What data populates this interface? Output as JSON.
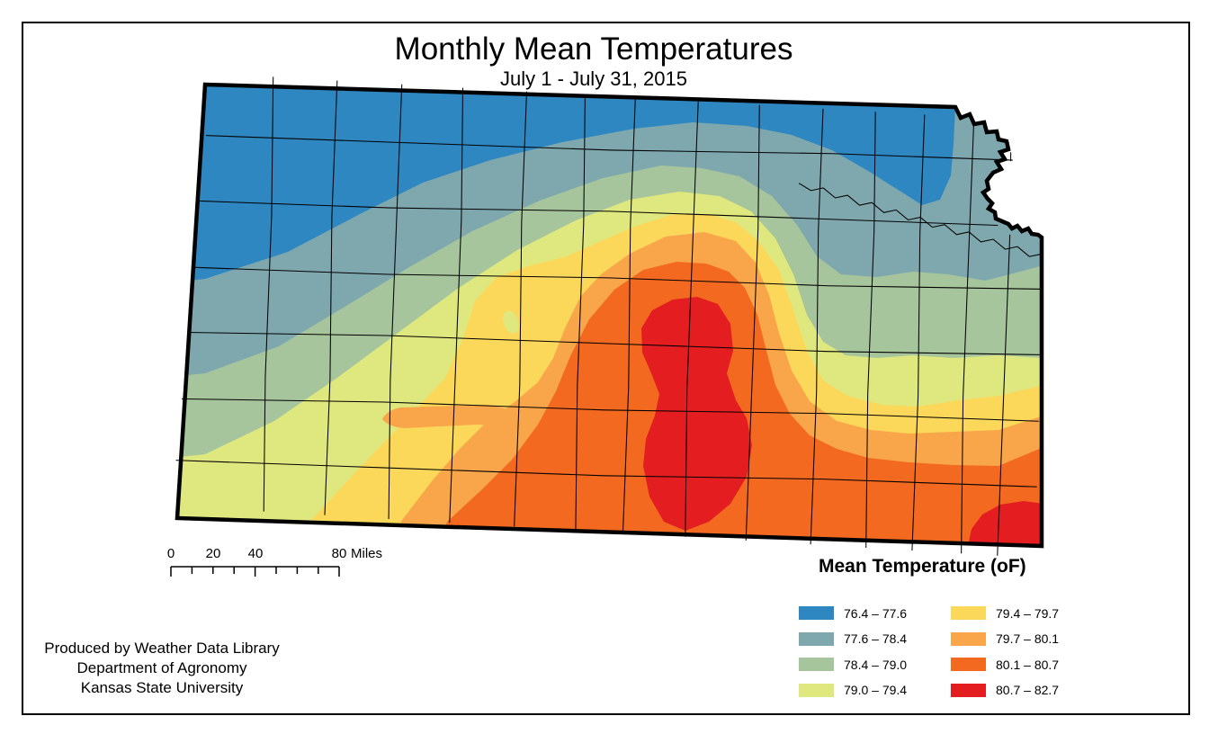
{
  "title": {
    "main": "Monthly Mean Temperatures",
    "subtitle": "July 1 - July 31, 2015"
  },
  "legend": {
    "title": "Mean Temperature (oF)",
    "items": [
      {
        "label": "76.4 – 77.6",
        "color": "#2E87C1"
      },
      {
        "label": "77.6 – 78.4",
        "color": "#7EA8AE"
      },
      {
        "label": "78.4 – 79.0",
        "color": "#A7C59C"
      },
      {
        "label": "79.0 – 79.4",
        "color": "#DFE87F"
      },
      {
        "label": "79.4 – 79.7",
        "color": "#FBD85A"
      },
      {
        "label": "79.7 – 80.1",
        "color": "#F9A64A"
      },
      {
        "label": "80.1 – 80.7",
        "color": "#F2691F"
      },
      {
        "label": "80.7 – 82.7",
        "color": "#E41D20"
      }
    ]
  },
  "scalebar": {
    "labels": [
      "0",
      "20",
      "40",
      "80"
    ],
    "unit": "Miles"
  },
  "attribution": {
    "lines": [
      "Produced by Weather Data Library",
      "Department of Agronomy",
      "Kansas State University"
    ]
  },
  "map": {
    "outline_color": "#000000",
    "county_line_color": "#000000"
  }
}
